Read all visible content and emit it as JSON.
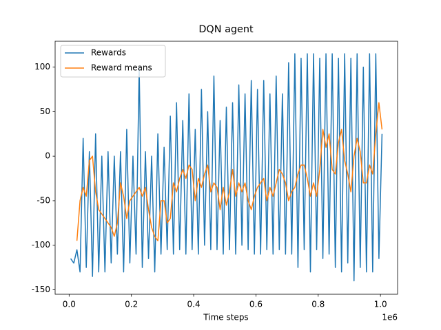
{
  "chart_data": {
    "type": "line",
    "title": "DQN agent",
    "x_label": "Time steps",
    "x_offset_label": "1e6",
    "x": [
      5000,
      15000,
      25000,
      35000,
      45000,
      55000,
      65000,
      75000,
      85000,
      95000,
      105000,
      115000,
      125000,
      135000,
      145000,
      155000,
      165000,
      175000,
      185000,
      195000,
      205000,
      215000,
      225000,
      235000,
      245000,
      255000,
      265000,
      275000,
      285000,
      295000,
      305000,
      315000,
      325000,
      335000,
      345000,
      355000,
      365000,
      375000,
      385000,
      395000,
      405000,
      415000,
      425000,
      435000,
      445000,
      455000,
      465000,
      475000,
      485000,
      495000,
      505000,
      515000,
      525000,
      535000,
      545000,
      555000,
      565000,
      575000,
      585000,
      595000,
      605000,
      615000,
      625000,
      635000,
      645000,
      655000,
      665000,
      675000,
      685000,
      695000,
      705000,
      715000,
      725000,
      735000,
      745000,
      755000,
      765000,
      775000,
      785000,
      795000,
      805000,
      815000,
      825000,
      835000,
      845000,
      855000,
      865000,
      875000,
      885000,
      895000,
      905000,
      915000,
      925000,
      935000,
      945000,
      955000,
      965000,
      975000,
      985000,
      995000,
      1005000
    ],
    "series": [
      {
        "name": "Rewards",
        "color": "#1f77b4",
        "values": [
          -115,
          -120,
          -105,
          -130,
          20,
          -125,
          5,
          -135,
          25,
          -130,
          0,
          -130,
          5,
          -120,
          0,
          -110,
          5,
          -130,
          30,
          -120,
          0,
          -110,
          100,
          -125,
          5,
          -115,
          0,
          -130,
          25,
          -110,
          10,
          -105,
          45,
          -110,
          60,
          -105,
          40,
          -110,
          70,
          -105,
          30,
          -110,
          75,
          -100,
          50,
          -105,
          90,
          -105,
          40,
          -110,
          55,
          -105,
          60,
          -110,
          80,
          -100,
          70,
          -105,
          85,
          -110,
          75,
          -110,
          85,
          -105,
          70,
          -110,
          90,
          -105,
          70,
          -110,
          105,
          -110,
          115,
          -125,
          110,
          -105,
          115,
          -130,
          115,
          -105,
          110,
          -115,
          115,
          -110,
          115,
          -125,
          110,
          -130,
          115,
          -120,
          110,
          -140,
          115,
          -125,
          100,
          -130,
          115,
          -130,
          115,
          -115,
          25
        ]
      },
      {
        "name": "Reward means",
        "color": "#ff7f0e",
        "values": [
          null,
          null,
          -95,
          -50,
          -35,
          -45,
          -5,
          0,
          -40,
          -60,
          -65,
          -70,
          -75,
          -80,
          -90,
          -75,
          -30,
          -45,
          -70,
          -50,
          -45,
          -40,
          -35,
          -45,
          -35,
          -60,
          -80,
          -90,
          -95,
          -50,
          -50,
          -75,
          -70,
          -30,
          -40,
          -25,
          -15,
          -25,
          -10,
          -15,
          -50,
          -25,
          -35,
          -20,
          -10,
          -40,
          -30,
          -35,
          -60,
          -35,
          -55,
          -40,
          -15,
          -45,
          -30,
          -40,
          -30,
          -50,
          -60,
          -45,
          -35,
          -30,
          -25,
          -50,
          -35,
          -45,
          -30,
          -15,
          -20,
          -30,
          -50,
          -40,
          -35,
          -20,
          -10,
          -10,
          -25,
          -45,
          -30,
          -45,
          -15,
          30,
          10,
          25,
          -15,
          -20,
          15,
          30,
          -5,
          -20,
          -40,
          0,
          20,
          5,
          -30,
          -30,
          -10,
          -20,
          25,
          60,
          30
        ]
      }
    ],
    "xlim": [
      -45000,
      1055000
    ],
    "ylim": [
      -155,
      129
    ],
    "xticks": [
      {
        "value": 0,
        "label": "0.0"
      },
      {
        "value": 200000,
        "label": "0.2"
      },
      {
        "value": 400000,
        "label": "0.4"
      },
      {
        "value": 600000,
        "label": "0.6"
      },
      {
        "value": 800000,
        "label": "0.8"
      },
      {
        "value": 1000000,
        "label": "1.0"
      }
    ],
    "yticks": [
      -150,
      -100,
      -50,
      0,
      50,
      100
    ],
    "legend": "upper left"
  }
}
